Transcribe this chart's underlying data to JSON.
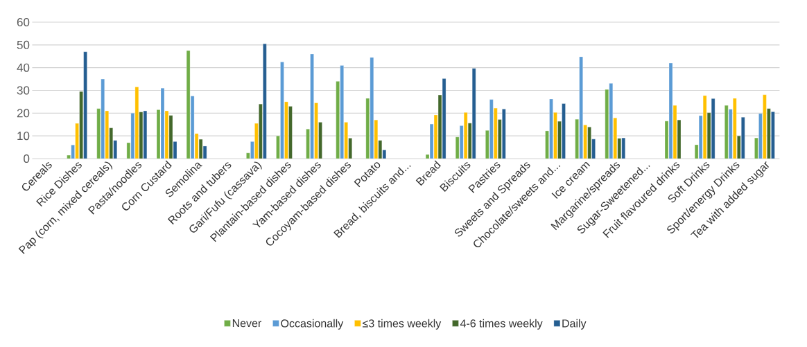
{
  "chart_data": {
    "type": "bar",
    "categories": [
      "Cereals",
      "Rice Dishes",
      "Pap (corn, mixed cereals)",
      "Pasta/noodles",
      "Corn Custard",
      "Semolina",
      "Roots and tubers",
      "Gari/Fufu (cassava)",
      "Plantain-based dishes",
      "Yam-based dishes",
      "Cocoyam-based dishes",
      "Potato",
      "Bread, biscuits and...",
      "Bread",
      "Biscuits",
      "Pastries",
      "Sweets and Spreads",
      "Chocolate/sweets and...",
      "Ice cream",
      "Margarine/spreads",
      "Sugar-Sweetened...",
      "Fruit flavoured drinks",
      "Soft Drinks",
      "Sport/energy Drinks",
      "Tea with added sugar"
    ],
    "series": [
      {
        "name": "Never",
        "color": "#70ad47",
        "values": [
          null,
          1.5,
          22,
          7,
          21.5,
          47.5,
          null,
          2.5,
          10,
          13,
          34,
          26.5,
          null,
          1.8,
          9.5,
          12.4,
          null,
          12.2,
          17.3,
          30.4,
          null,
          16.5,
          6.1,
          23.4,
          9.1
        ]
      },
      {
        "name": "Occasionally",
        "color": "#5b9bd5",
        "values": [
          null,
          6,
          35,
          20,
          31,
          27.5,
          null,
          7.5,
          42.5,
          46,
          41,
          44.5,
          null,
          15.2,
          14.5,
          26,
          null,
          26.2,
          44.8,
          33.1,
          null,
          42,
          18.9,
          21.7,
          19.8
        ]
      },
      {
        "name": "≤3 times weekly",
        "color": "#ffc000",
        "values": [
          null,
          15.5,
          21,
          31.5,
          21,
          11,
          null,
          15.5,
          25,
          24.5,
          16,
          17,
          null,
          19.2,
          20.3,
          22.2,
          null,
          20.3,
          14.8,
          17.9,
          null,
          23.4,
          27.7,
          26.5,
          28.1
        ]
      },
      {
        "name": "4-6 times weekly",
        "color": "#43682b",
        "values": [
          null,
          29.5,
          13.5,
          20.5,
          19,
          8.5,
          null,
          24,
          23,
          16,
          9,
          8,
          null,
          28,
          15.6,
          17.2,
          null,
          16.4,
          13.9,
          8.9,
          null,
          17,
          20.2,
          10,
          22
        ]
      },
      {
        "name": "Daily",
        "color": "#255e91",
        "values": [
          null,
          47,
          8,
          21,
          7.5,
          5.5,
          null,
          50.5,
          null,
          null,
          null,
          3.8,
          null,
          35.2,
          39.7,
          21.8,
          null,
          24.2,
          8.6,
          9.1,
          null,
          null,
          26.4,
          18.2,
          20.6
        ]
      }
    ],
    "ylim": [
      0,
      60
    ],
    "yticks": [
      0,
      10,
      20,
      30,
      40,
      50,
      60
    ],
    "grid": "y",
    "legend": "bottom"
  }
}
